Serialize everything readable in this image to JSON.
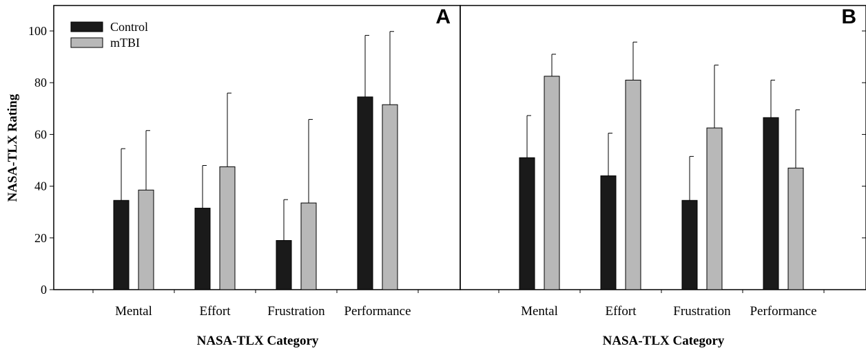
{
  "chart_data": {
    "type": "bar",
    "ylabel": "NASA-TLX Rating",
    "xlabel": "NASA-TLX Category",
    "ylim": [
      0,
      110
    ],
    "yticks": [
      "0",
      "20",
      "40",
      "60",
      "80",
      "100"
    ],
    "categories": [
      "Mental",
      "Effort",
      "Frustration",
      "Performance"
    ],
    "legend": {
      "placement": "top-left",
      "entries": [
        "Control",
        "mTBI"
      ]
    },
    "colors": {
      "Control": "#1a1a1a",
      "mTBI": "#b8b8b8"
    },
    "panels": [
      {
        "label": "A",
        "series": [
          {
            "name": "Control",
            "values": [
              34.5,
              31.5,
              19,
              74.5
            ],
            "errors": [
              20,
              16.5,
              15.8,
              23.8
            ]
          },
          {
            "name": "mTBI",
            "values": [
              38.5,
              47.5,
              33.5,
              71.5
            ],
            "errors": [
              23,
              28.5,
              32.3,
              28.3
            ]
          }
        ]
      },
      {
        "label": "B",
        "series": [
          {
            "name": "Control",
            "values": [
              51,
              44,
              34.5,
              66.5
            ],
            "errors": [
              16.3,
              16.5,
              17,
              14.5
            ]
          },
          {
            "name": "mTBI",
            "values": [
              82.5,
              81,
              62.5,
              47
            ],
            "errors": [
              8.5,
              14.7,
              24.3,
              22.5
            ]
          }
        ]
      }
    ]
  }
}
